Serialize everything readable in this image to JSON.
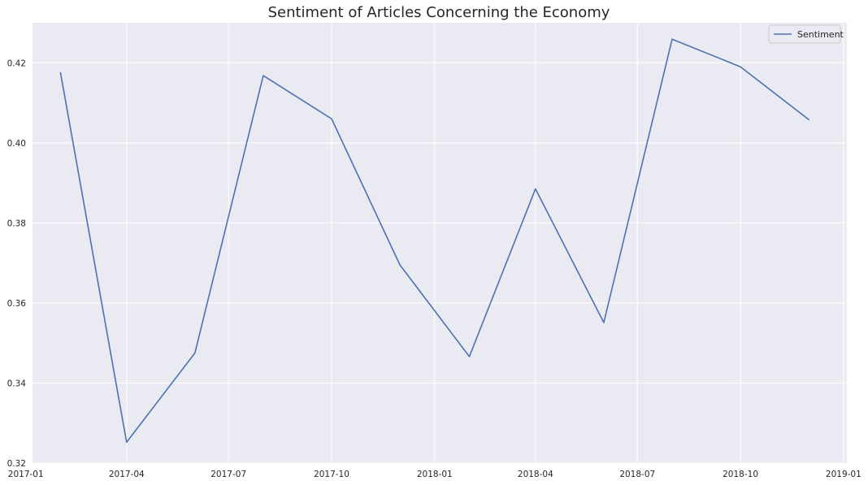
{
  "chart_data": {
    "type": "line",
    "title": "Sentiment of Articles Concerning the Economy",
    "xlabel": "",
    "ylabel": "",
    "x_axis": "date",
    "x": [
      "2017-02-01",
      "2017-04-01",
      "2017-06-01",
      "2017-08-01",
      "2017-10-01",
      "2017-12-01",
      "2018-02-01",
      "2018-04-01",
      "2018-06-01",
      "2018-08-01",
      "2018-10-01",
      "2018-12-01"
    ],
    "series": [
      {
        "name": "Sentiment",
        "color": "#4c72b0",
        "values": [
          0.4175,
          0.3252,
          0.3475,
          0.4168,
          0.406,
          0.3695,
          0.3466,
          0.3885,
          0.3551,
          0.4259,
          0.419,
          0.4058
        ]
      }
    ],
    "xlim": [
      "2017-01-07",
      "2019-01-04"
    ],
    "ylim": [
      0.32,
      0.43
    ],
    "x_ticks": [
      "2017-01",
      "2017-04",
      "2017-07",
      "2017-10",
      "2018-01",
      "2018-04",
      "2018-07",
      "2018-10",
      "2019-01"
    ],
    "y_ticks": [
      "0.32",
      "0.34",
      "0.36",
      "0.38",
      "0.40",
      "0.42"
    ],
    "grid": true,
    "legend_position": "top-right",
    "style": {
      "background": "#eaeaf2",
      "grid_color": "#ffffff",
      "text_color": "#262626"
    }
  }
}
